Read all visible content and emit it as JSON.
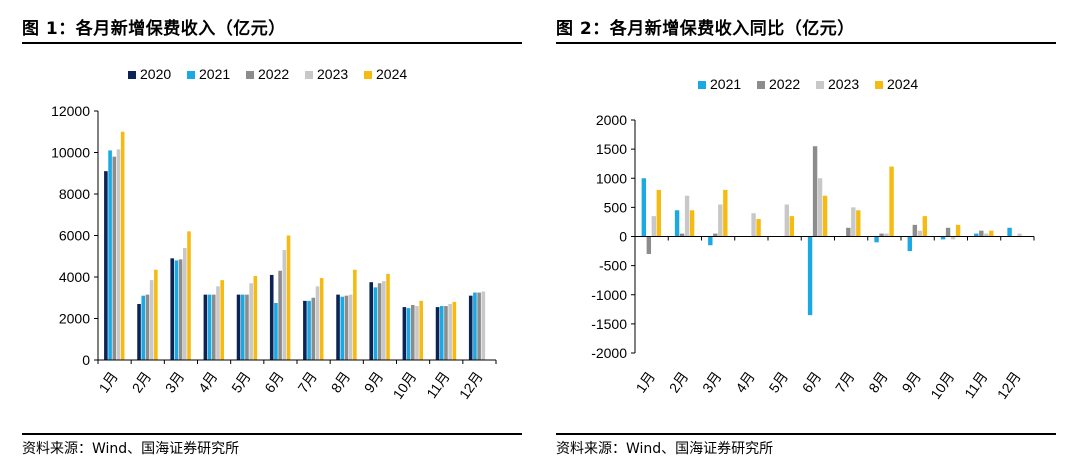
{
  "left": {
    "title": "图 1：各月新增保费收入（亿元）",
    "source": "资料来源：Wind、国海证券研究所"
  },
  "right": {
    "title": "图 2：各月新增保费收入同比（亿元）",
    "source": "资料来源：Wind、国海证券研究所"
  },
  "colors": {
    "2020": "#0c2356",
    "2021": "#1aa9e2",
    "2022": "#8c8c8c",
    "2023": "#c8c8c8",
    "2024": "#f6bb12"
  },
  "chart_data": [
    {
      "type": "bar",
      "categories": [
        "1月",
        "2月",
        "3月",
        "4月",
        "5月",
        "6月",
        "7月",
        "8月",
        "9月",
        "10月",
        "11月",
        "12月"
      ],
      "series": [
        {
          "name": "2020",
          "values": [
            9100,
            2700,
            4900,
            3150,
            3150,
            4100,
            2850,
            3150,
            3750,
            2550,
            2550,
            3100
          ]
        },
        {
          "name": "2021",
          "values": [
            10100,
            3100,
            4800,
            3150,
            3150,
            2750,
            2850,
            3050,
            3500,
            2500,
            2600,
            3250
          ]
        },
        {
          "name": "2022",
          "values": [
            9800,
            3150,
            4850,
            3150,
            3150,
            4300,
            3000,
            3100,
            3700,
            2650,
            2600,
            3250
          ]
        },
        {
          "name": "2023",
          "values": [
            10150,
            3850,
            5400,
            3550,
            3700,
            5300,
            3550,
            3150,
            3800,
            2600,
            2700,
            3300
          ]
        },
        {
          "name": "2024",
          "values": [
            11000,
            4350,
            6200,
            3850,
            4050,
            6000,
            3950,
            4350,
            4150,
            2850,
            2800,
            null
          ]
        }
      ],
      "ylim": [
        0,
        12000
      ],
      "yticks": [
        "0",
        "2000",
        "4000",
        "6000",
        "8000",
        "10000",
        "12000"
      ],
      "legend": "top"
    },
    {
      "type": "bar",
      "categories": [
        "1月",
        "2月",
        "3月",
        "4月",
        "5月",
        "6月",
        "7月",
        "8月",
        "9月",
        "10月",
        "11月",
        "12月"
      ],
      "series": [
        {
          "name": "2021",
          "values": [
            1000,
            450,
            -150,
            0,
            0,
            -1350,
            0,
            -100,
            -250,
            -50,
            50,
            150
          ]
        },
        {
          "name": "2022",
          "values": [
            -300,
            50,
            50,
            0,
            0,
            1550,
            150,
            50,
            200,
            150,
            100,
            0
          ]
        },
        {
          "name": "2023",
          "values": [
            350,
            700,
            550,
            400,
            550,
            1000,
            500,
            50,
            100,
            -50,
            50,
            50
          ]
        },
        {
          "name": "2024",
          "values": [
            800,
            450,
            800,
            300,
            350,
            700,
            450,
            1200,
            350,
            200,
            100,
            null
          ]
        }
      ],
      "ylim": [
        -2000,
        2000
      ],
      "yticks": [
        "-2000",
        "-1500",
        "-1000",
        "-500",
        "0",
        "500",
        "1000",
        "1500",
        "2000"
      ],
      "legend": "top"
    }
  ]
}
